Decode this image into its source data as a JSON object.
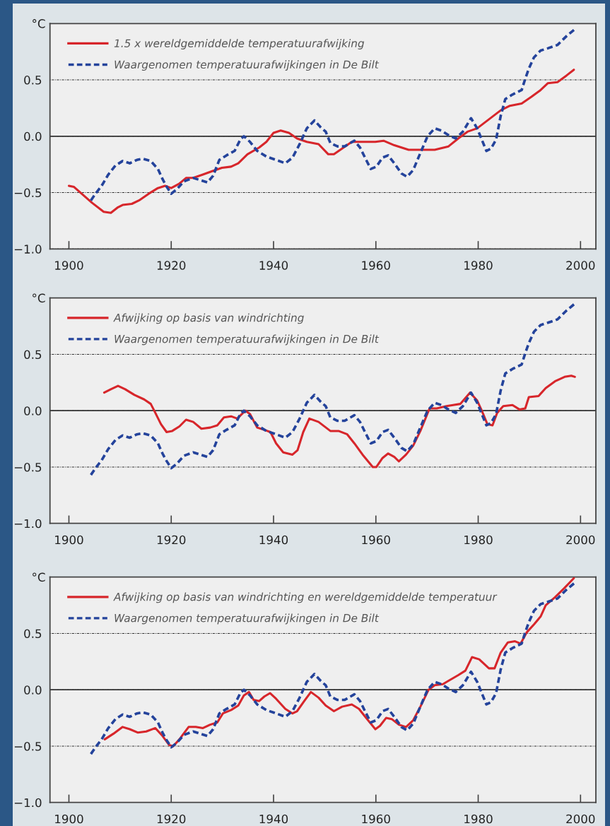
{
  "chart_data": [
    {
      "type": "line",
      "ylabel": "°C",
      "xlim": [
        1896.3,
        2003
      ],
      "ylim": [
        -1.0,
        1.0
      ],
      "xticks": [
        1900,
        1920,
        1940,
        1960,
        1980,
        2000
      ],
      "yticks": [
        {
          "value": -1.0,
          "label": "−1.0"
        },
        {
          "value": -0.5,
          "label": "−0.5"
        },
        {
          "value": 0.0,
          "label": "0.0"
        },
        {
          "value": 0.5,
          "label": "0.5"
        }
      ],
      "grid": "y",
      "legend": "top left",
      "ref_lines": [
        {
          "axis": "y",
          "value": 0.0,
          "color": "#333333",
          "line_style": "solid"
        }
      ],
      "series": [
        {
          "name": "1.5 x wereldgemiddelde temperatuurafwijking",
          "color": "#d7262b",
          "line_style": "solid",
          "x": [
            1900,
            1901,
            1904.5,
            1906.8,
            1908.2,
            1909.6,
            1910.5,
            1912.3,
            1913.7,
            1915.6,
            1917.4,
            1918.8,
            1920,
            1921.6,
            1922.9,
            1924.3,
            1926.2,
            1928,
            1929.9,
            1931.7,
            1933.1,
            1934.9,
            1937.2,
            1938.6,
            1940,
            1941.4,
            1943,
            1944.6,
            1946.5,
            1948.8,
            1950.7,
            1951.8,
            1953.4,
            1955.3,
            1957.1,
            1959.9,
            1961.5,
            1963.6,
            1966.4,
            1968.2,
            1971.5,
            1974.2,
            1976.1,
            1977.9,
            1979.8,
            1982.1,
            1984.4,
            1986.2,
            1988.5,
            1990.4,
            1992.2,
            1993.6,
            1995.5,
            1997.3,
            1998.7
          ],
          "values": [
            -0.44,
            -0.45,
            -0.59,
            -0.67,
            -0.68,
            -0.63,
            -0.61,
            -0.6,
            -0.57,
            -0.51,
            -0.46,
            -0.44,
            -0.46,
            -0.42,
            -0.37,
            -0.37,
            -0.34,
            -0.31,
            -0.28,
            -0.27,
            -0.24,
            -0.16,
            -0.1,
            -0.05,
            0.03,
            0.05,
            0.03,
            -0.02,
            -0.05,
            -0.07,
            -0.16,
            -0.16,
            -0.11,
            -0.05,
            -0.05,
            -0.05,
            -0.04,
            -0.08,
            -0.12,
            -0.12,
            -0.12,
            -0.09,
            -0.02,
            0.04,
            0.07,
            0.15,
            0.23,
            0.27,
            0.29,
            0.35,
            0.41,
            0.47,
            0.48,
            0.54,
            0.59
          ]
        },
        {
          "name": "Waargenomen temperatuurafwijkingen in De Bilt",
          "color": "#24439b",
          "line_style": "dashed",
          "x": [
            1904.3,
            1905.2,
            1906.4,
            1907.7,
            1909.1,
            1910.5,
            1911.9,
            1913.3,
            1914.4,
            1916.0,
            1917.4,
            1918.3,
            1919.0,
            1920.0,
            1921.1,
            1922.5,
            1924.3,
            1925.7,
            1927.1,
            1928.2,
            1929.4,
            1930.8,
            1932.4,
            1933.5,
            1934.2,
            1935.4,
            1936.8,
            1938.6,
            1940.5,
            1942.3,
            1943.7,
            1945.1,
            1946.5,
            1948.0,
            1949.2,
            1950.2,
            1951.1,
            1952.5,
            1953.9,
            1955.8,
            1956.9,
            1958.1,
            1959.0,
            1960.1,
            1961.3,
            1962.4,
            1963.6,
            1965.0,
            1966.1,
            1967.3,
            1968.5,
            1970.1,
            1971.5,
            1972.8,
            1974.2,
            1975.6,
            1977.0,
            1978.6,
            1979.8,
            1980.7,
            1981.6,
            1982.5,
            1983.5,
            1984.4,
            1985.3,
            1986.7,
            1988.5,
            1989.2,
            1989.9,
            1990.9,
            1992.2,
            1993.6,
            1995.5,
            1997.3,
            1998.9
          ],
          "values": [
            -0.57,
            -0.51,
            -0.44,
            -0.34,
            -0.26,
            -0.22,
            -0.24,
            -0.21,
            -0.2,
            -0.22,
            -0.29,
            -0.38,
            -0.44,
            -0.51,
            -0.47,
            -0.4,
            -0.37,
            -0.39,
            -0.41,
            -0.35,
            -0.21,
            -0.17,
            -0.13,
            -0.03,
            0.0,
            -0.05,
            -0.13,
            -0.18,
            -0.21,
            -0.24,
            -0.19,
            -0.07,
            0.07,
            0.14,
            0.08,
            0.04,
            -0.06,
            -0.09,
            -0.09,
            -0.04,
            -0.1,
            -0.21,
            -0.29,
            -0.27,
            -0.19,
            -0.17,
            -0.24,
            -0.33,
            -0.36,
            -0.3,
            -0.17,
            0.0,
            0.07,
            0.05,
            0.01,
            -0.02,
            0.04,
            0.16,
            0.07,
            -0.03,
            -0.13,
            -0.11,
            -0.03,
            0.18,
            0.33,
            0.37,
            0.41,
            0.51,
            0.6,
            0.7,
            0.76,
            0.78,
            0.81,
            0.89,
            0.95
          ]
        }
      ]
    },
    {
      "type": "line",
      "ylabel": "°C",
      "xlim": [
        1896.3,
        2003
      ],
      "ylim": [
        -1.0,
        1.0
      ],
      "xticks": [
        1900,
        1920,
        1940,
        1960,
        1980,
        2000
      ],
      "yticks": [
        {
          "value": -1.0,
          "label": "−1.0"
        },
        {
          "value": -0.5,
          "label": "−0.5"
        },
        {
          "value": 0.0,
          "label": "0.0"
        },
        {
          "value": 0.5,
          "label": "0.5"
        }
      ],
      "grid": "y",
      "legend": "top left",
      "ref_lines": [
        {
          "axis": "y",
          "value": 0.0,
          "color": "#333333",
          "line_style": "solid"
        }
      ],
      "series": [
        {
          "name": "Afwijking op basis van windrichting",
          "color": "#d7262b",
          "line_style": "solid",
          "x": [
            1906.9,
            1908.2,
            1909.6,
            1911,
            1912.8,
            1914.7,
            1916,
            1916.9,
            1918,
            1919.1,
            1920.2,
            1921.6,
            1922.9,
            1924.3,
            1925.9,
            1927.6,
            1929,
            1930.3,
            1931.7,
            1932.9,
            1934.5,
            1935.4,
            1936.8,
            1938.2,
            1939.4,
            1940.5,
            1941.9,
            1943.7,
            1944.7,
            1945.8,
            1947,
            1948.8,
            1951.1,
            1952.7,
            1954.4,
            1955.8,
            1957.4,
            1959.4,
            1960.1,
            1961.3,
            1962.4,
            1963.6,
            1964.5,
            1965.9,
            1967.3,
            1968.7,
            1970.5,
            1971.9,
            1973.8,
            1975.1,
            1976.5,
            1978.4,
            1979.8,
            1980.7,
            1981.8,
            1982.8,
            1983.7,
            1984.9,
            1986.7,
            1988.1,
            1989.2,
            1989.9,
            1991.8,
            1993.2,
            1995,
            1996.9,
            1998.2,
            1998.9
          ],
          "values": [
            0.16,
            0.19,
            0.22,
            0.19,
            0.14,
            0.1,
            0.06,
            -0.02,
            -0.12,
            -0.19,
            -0.18,
            -0.14,
            -0.08,
            -0.1,
            -0.16,
            -0.15,
            -0.13,
            -0.06,
            -0.05,
            -0.07,
            0.0,
            -0.03,
            -0.15,
            -0.17,
            -0.19,
            -0.29,
            -0.37,
            -0.39,
            -0.35,
            -0.19,
            -0.07,
            -0.1,
            -0.18,
            -0.18,
            -0.21,
            -0.29,
            -0.39,
            -0.5,
            -0.5,
            -0.42,
            -0.38,
            -0.41,
            -0.45,
            -0.39,
            -0.31,
            -0.18,
            0.02,
            0.02,
            0.04,
            0.05,
            0.06,
            0.16,
            0.09,
            0.0,
            -0.12,
            -0.13,
            -0.02,
            0.04,
            0.05,
            0.01,
            0.02,
            0.12,
            0.13,
            0.2,
            0.26,
            0.3,
            0.31,
            0.3
          ]
        },
        {
          "name": "Waargenomen temperatuurafwijkingen in De Bilt",
          "color": "#24439b",
          "line_style": "dashed",
          "x": [
            1904.3,
            1905.2,
            1906.4,
            1907.7,
            1909.1,
            1910.5,
            1911.9,
            1913.3,
            1914.4,
            1916.0,
            1917.4,
            1918.3,
            1919.0,
            1920.0,
            1921.1,
            1922.5,
            1924.3,
            1925.7,
            1927.1,
            1928.2,
            1929.4,
            1930.8,
            1932.4,
            1933.5,
            1934.2,
            1935.4,
            1936.8,
            1938.6,
            1940.5,
            1942.3,
            1943.7,
            1945.1,
            1946.5,
            1948.0,
            1949.2,
            1950.2,
            1951.1,
            1952.5,
            1953.9,
            1955.8,
            1956.9,
            1958.1,
            1959.0,
            1960.1,
            1961.3,
            1962.4,
            1963.6,
            1965.0,
            1966.1,
            1967.3,
            1968.5,
            1970.1,
            1971.5,
            1972.8,
            1974.2,
            1975.6,
            1977.0,
            1978.6,
            1979.8,
            1980.7,
            1981.6,
            1982.5,
            1983.5,
            1984.4,
            1985.3,
            1986.7,
            1988.5,
            1989.2,
            1989.9,
            1990.9,
            1992.2,
            1993.6,
            1995.5,
            1997.3,
            1998.9
          ],
          "values": [
            -0.57,
            -0.51,
            -0.44,
            -0.34,
            -0.26,
            -0.22,
            -0.24,
            -0.21,
            -0.2,
            -0.22,
            -0.29,
            -0.38,
            -0.44,
            -0.51,
            -0.47,
            -0.4,
            -0.37,
            -0.39,
            -0.41,
            -0.35,
            -0.21,
            -0.17,
            -0.13,
            -0.03,
            0.0,
            -0.05,
            -0.13,
            -0.18,
            -0.21,
            -0.24,
            -0.19,
            -0.07,
            0.07,
            0.14,
            0.08,
            0.04,
            -0.06,
            -0.09,
            -0.09,
            -0.04,
            -0.1,
            -0.21,
            -0.29,
            -0.27,
            -0.19,
            -0.17,
            -0.24,
            -0.33,
            -0.36,
            -0.3,
            -0.17,
            0.0,
            0.07,
            0.05,
            0.01,
            -0.02,
            0.04,
            0.16,
            0.07,
            -0.03,
            -0.13,
            -0.11,
            -0.03,
            0.18,
            0.33,
            0.37,
            0.41,
            0.51,
            0.6,
            0.7,
            0.76,
            0.78,
            0.81,
            0.89,
            0.95
          ]
        }
      ]
    },
    {
      "type": "line",
      "ylabel": "°C",
      "xlim": [
        1896.3,
        2003
      ],
      "ylim": [
        -1.0,
        1.0
      ],
      "xticks": [
        1900,
        1920,
        1940,
        1960,
        1980,
        2000
      ],
      "yticks": [
        {
          "value": -1.0,
          "label": "−1.0"
        },
        {
          "value": -0.5,
          "label": "−0.5"
        },
        {
          "value": 0.0,
          "label": "0.0"
        },
        {
          "value": 0.5,
          "label": "0.5"
        }
      ],
      "grid": "y",
      "legend": "top left",
      "ref_lines": [
        {
          "axis": "y",
          "value": 0.0,
          "color": "#333333",
          "line_style": "solid"
        }
      ],
      "series": [
        {
          "name": "Afwijking op basis van windrichting en wereldgemiddelde temperatuur",
          "color": "#d7262b",
          "line_style": "solid",
          "x": [
            1907,
            1908.7,
            1910.5,
            1911.9,
            1913.5,
            1915.1,
            1916.9,
            1918.3,
            1919.6,
            1920.4,
            1921.6,
            1923.4,
            1924.8,
            1926.2,
            1927.6,
            1929,
            1930.1,
            1931.7,
            1933.1,
            1934.2,
            1935.2,
            1936.1,
            1937.2,
            1938.2,
            1939.3,
            1940.5,
            1942.3,
            1943.7,
            1944.6,
            1946,
            1947.3,
            1948.8,
            1950.2,
            1951.8,
            1953.4,
            1955.3,
            1956.7,
            1958.1,
            1959.9,
            1960.8,
            1962,
            1963.1,
            1964.5,
            1965.9,
            1967.3,
            1968.7,
            1970.3,
            1971.5,
            1973.1,
            1974.2,
            1976.1,
            1977.5,
            1978.8,
            1980.2,
            1982.1,
            1983.2,
            1984.4,
            1985.8,
            1987.2,
            1988.3,
            1989.5,
            1990.9,
            1992.2,
            1993.2,
            1995,
            1996.8,
            1998.7
          ],
          "values": [
            -0.44,
            -0.39,
            -0.33,
            -0.35,
            -0.38,
            -0.37,
            -0.34,
            -0.41,
            -0.49,
            -0.5,
            -0.44,
            -0.33,
            -0.33,
            -0.34,
            -0.31,
            -0.29,
            -0.21,
            -0.18,
            -0.14,
            -0.05,
            -0.02,
            -0.09,
            -0.1,
            -0.06,
            -0.03,
            -0.08,
            -0.17,
            -0.21,
            -0.19,
            -0.1,
            -0.02,
            -0.07,
            -0.14,
            -0.19,
            -0.15,
            -0.13,
            -0.17,
            -0.25,
            -0.35,
            -0.32,
            -0.25,
            -0.26,
            -0.31,
            -0.33,
            -0.27,
            -0.15,
            0.0,
            0.04,
            0.05,
            0.08,
            0.13,
            0.17,
            0.29,
            0.27,
            0.19,
            0.19,
            0.33,
            0.42,
            0.43,
            0.41,
            0.51,
            0.58,
            0.65,
            0.75,
            0.82,
            0.9,
            0.99
          ]
        },
        {
          "name": "Waargenomen temperatuurafwijkingen in De Bilt",
          "color": "#24439b",
          "line_style": "dashed",
          "x": [
            1904.3,
            1905.2,
            1906.4,
            1907.7,
            1909.1,
            1910.5,
            1911.9,
            1913.3,
            1914.4,
            1916.0,
            1917.4,
            1918.3,
            1919.0,
            1920.0,
            1921.1,
            1922.5,
            1924.3,
            1925.7,
            1927.1,
            1928.2,
            1929.4,
            1930.8,
            1932.4,
            1933.5,
            1934.2,
            1935.4,
            1936.8,
            1938.6,
            1940.5,
            1942.3,
            1943.7,
            1945.1,
            1946.5,
            1948.0,
            1949.2,
            1950.2,
            1951.1,
            1952.5,
            1953.9,
            1955.8,
            1956.9,
            1958.1,
            1959.0,
            1960.1,
            1961.3,
            1962.4,
            1963.6,
            1965.0,
            1966.1,
            1967.3,
            1968.5,
            1970.1,
            1971.5,
            1972.8,
            1974.2,
            1975.6,
            1977.0,
            1978.6,
            1979.8,
            1980.7,
            1981.6,
            1982.5,
            1983.5,
            1984.4,
            1985.3,
            1986.7,
            1988.5,
            1989.2,
            1989.9,
            1990.9,
            1992.2,
            1993.6,
            1995.5,
            1997.3,
            1998.9
          ],
          "values": [
            -0.57,
            -0.51,
            -0.44,
            -0.34,
            -0.26,
            -0.22,
            -0.24,
            -0.21,
            -0.2,
            -0.22,
            -0.29,
            -0.38,
            -0.44,
            -0.51,
            -0.47,
            -0.4,
            -0.37,
            -0.39,
            -0.41,
            -0.35,
            -0.21,
            -0.17,
            -0.13,
            -0.03,
            0.0,
            -0.05,
            -0.13,
            -0.18,
            -0.21,
            -0.24,
            -0.19,
            -0.07,
            0.07,
            0.14,
            0.08,
            0.04,
            -0.06,
            -0.09,
            -0.09,
            -0.04,
            -0.1,
            -0.21,
            -0.29,
            -0.27,
            -0.19,
            -0.17,
            -0.24,
            -0.33,
            -0.36,
            -0.3,
            -0.17,
            0.0,
            0.07,
            0.05,
            0.01,
            -0.02,
            0.04,
            0.16,
            0.07,
            -0.03,
            -0.13,
            -0.11,
            -0.03,
            0.18,
            0.33,
            0.37,
            0.41,
            0.51,
            0.6,
            0.7,
            0.76,
            0.78,
            0.81,
            0.89,
            0.95
          ]
        }
      ]
    }
  ]
}
